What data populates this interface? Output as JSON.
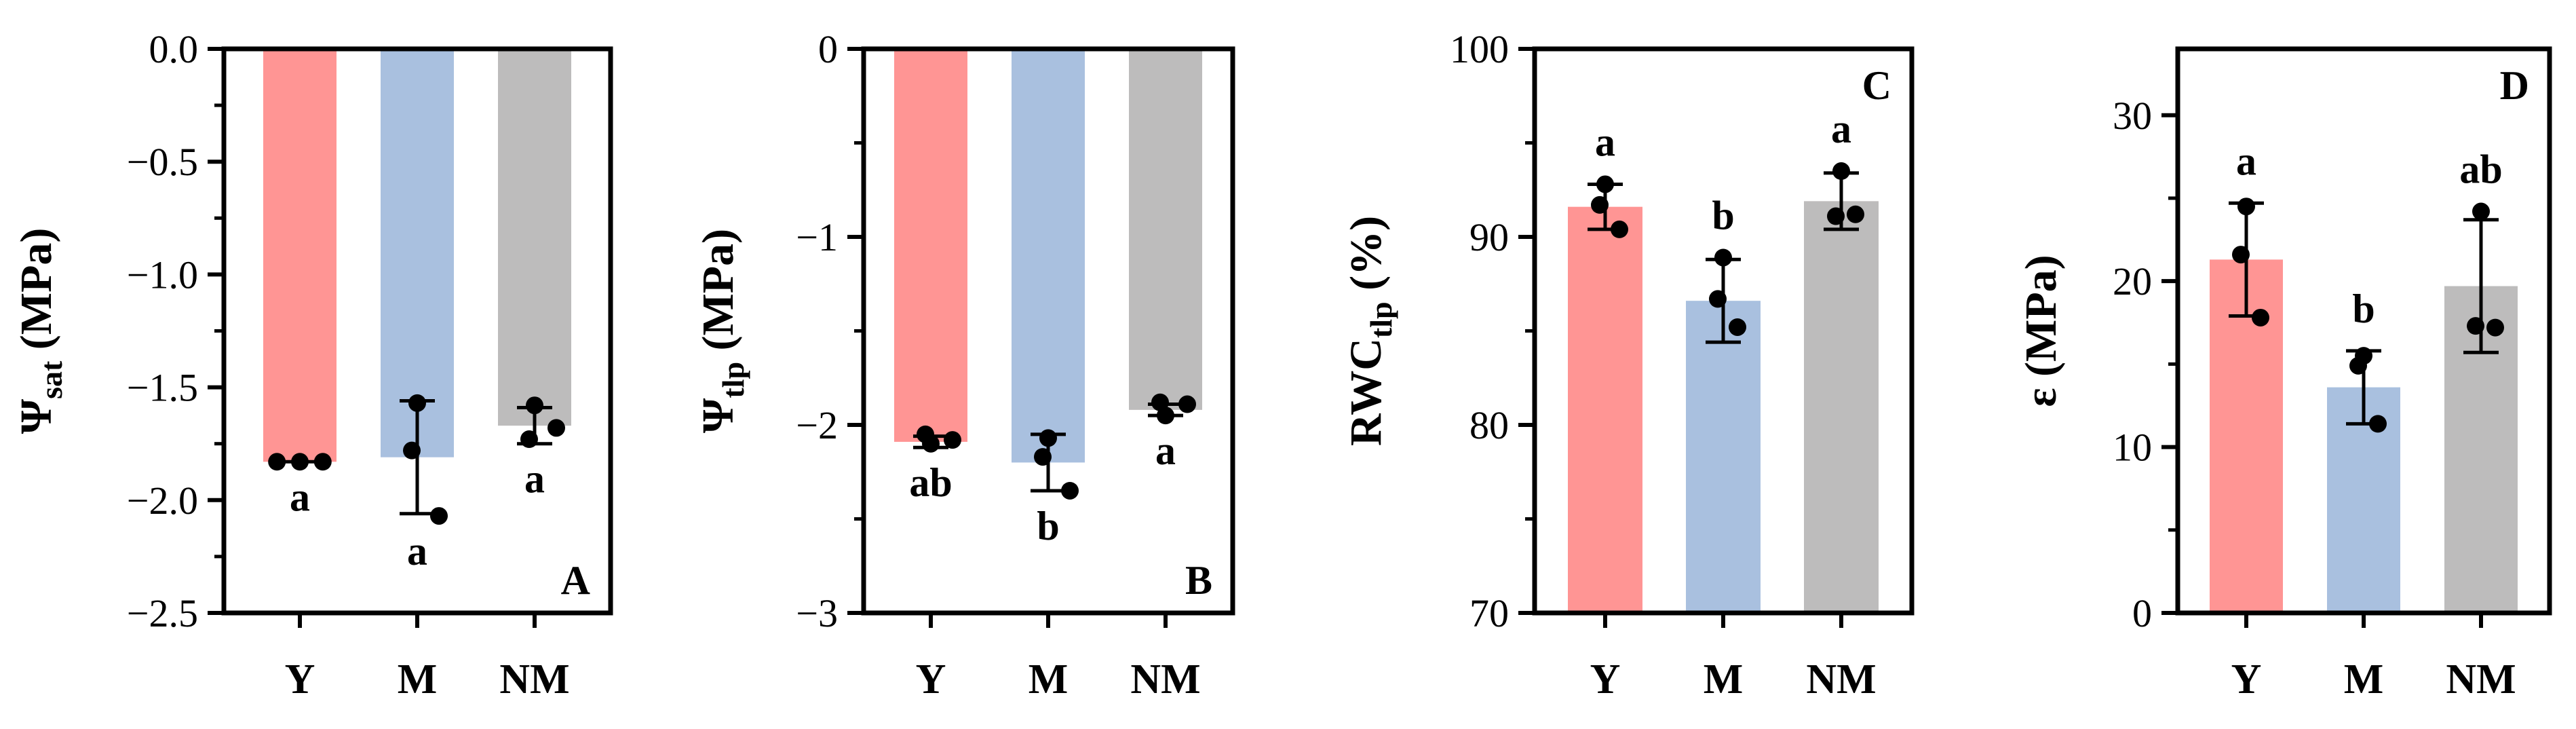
{
  "colors": {
    "Y": "#ff9594",
    "M": "#a9c0df",
    "NM": "#bdbcbc",
    "axis": "#000000",
    "point": "#000000"
  },
  "chart_data": [
    {
      "type": "bar",
      "panel_label": "A",
      "ylabel": {
        "main": "Ψ",
        "sub": "sat",
        "unit": " (MPa)"
      },
      "categories": [
        "Y",
        "M",
        "NM"
      ],
      "ylim": [
        -2.5,
        0
      ],
      "yticks": [
        0,
        -0.5,
        -1,
        -1.5,
        -2,
        -2.5
      ],
      "ytick_labels": [
        "0.0",
        "−0.5",
        "−1.0",
        "−1.5",
        "−2.0",
        "−2.5"
      ],
      "bar_base": 0,
      "values": [
        -1.83,
        -1.81,
        -1.67
      ],
      "errors": [
        0.0,
        0.25,
        0.08
      ],
      "points": [
        [
          -1.83,
          -1.83,
          -1.83
        ],
        [
          -1.57,
          -1.78,
          -2.07
        ],
        [
          -1.58,
          -1.73,
          -1.68
        ]
      ],
      "letters": [
        "a",
        "a",
        "a"
      ],
      "letter_position": "below"
    },
    {
      "type": "bar",
      "panel_label": "B",
      "ylabel": {
        "main": "Ψ",
        "sub": "tlp",
        "unit": " (MPa)"
      },
      "categories": [
        "Y",
        "M",
        "NM"
      ],
      "ylim": [
        -3,
        0
      ],
      "yticks": [
        0,
        -1,
        -2,
        -3
      ],
      "ytick_labels": [
        "0",
        "−1",
        "−2",
        "−3"
      ],
      "bar_base": 0,
      "values": [
        -2.09,
        -2.2,
        -1.92
      ],
      "errors": [
        0.03,
        0.15,
        0.03
      ],
      "points": [
        [
          -2.1,
          -2.05,
          -2.08
        ],
        [
          -2.07,
          -2.17,
          -2.35
        ],
        [
          -1.95,
          -1.88,
          -1.89
        ]
      ],
      "letters": [
        "ab",
        "b",
        "a"
      ],
      "letter_position": "below"
    },
    {
      "type": "bar",
      "panel_label": "C",
      "ylabel": {
        "main": "RWC",
        "sub": "tlp",
        "unit": " (%)"
      },
      "categories": [
        "Y",
        "M",
        "NM"
      ],
      "ylim": [
        70,
        100
      ],
      "yticks": [
        70,
        80,
        90,
        100
      ],
      "ytick_labels": [
        "70",
        "80",
        "90",
        "100"
      ],
      "bar_base": 70,
      "values": [
        91.6,
        86.6,
        91.9
      ],
      "errors": [
        1.2,
        2.2,
        1.5
      ],
      "points": [
        [
          92.8,
          91.7,
          90.4
        ],
        [
          88.9,
          86.7,
          85.2
        ],
        [
          93.5,
          91.1,
          91.2
        ]
      ],
      "letters": [
        "a",
        "b",
        "a"
      ],
      "letter_position": "above"
    },
    {
      "type": "bar",
      "panel_label": "D",
      "ylabel": {
        "main": "ε",
        "sub": "",
        "unit": " (MPa)"
      },
      "categories": [
        "Y",
        "M",
        "NM"
      ],
      "ylim": [
        0,
        34
      ],
      "yticks": [
        0,
        10,
        20,
        30
      ],
      "ytick_labels": [
        "0",
        "10",
        "20",
        "30"
      ],
      "bar_base": 0,
      "values": [
        21.3,
        13.6,
        19.7
      ],
      "errors": [
        3.4,
        2.2,
        4.0
      ],
      "points": [
        [
          24.5,
          21.6,
          17.8
        ],
        [
          15.5,
          14.9,
          11.4
        ],
        [
          24.2,
          17.3,
          17.2
        ]
      ],
      "letters": [
        "a",
        "b",
        "ab"
      ],
      "letter_position": "above"
    }
  ]
}
